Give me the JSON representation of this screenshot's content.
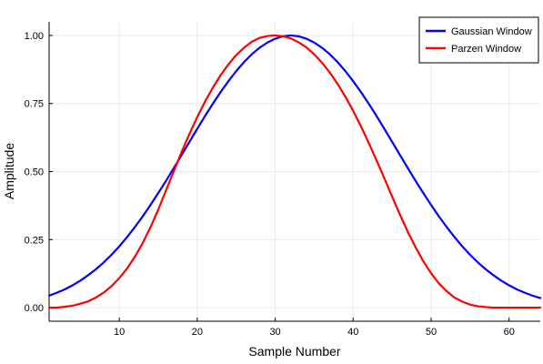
{
  "chart_data": {
    "type": "line",
    "title": "",
    "xlabel": "Sample Number",
    "ylabel": "Amplitude",
    "xlim": [
      1,
      64
    ],
    "ylim": [
      -0.05,
      1.05
    ],
    "grid": true,
    "legend_position": "top-right",
    "x_ticks": [
      {
        "value": 10,
        "label": "10"
      },
      {
        "value": 20,
        "label": "20"
      },
      {
        "value": 30,
        "label": "30"
      },
      {
        "value": 40,
        "label": "40"
      },
      {
        "value": 50,
        "label": "50"
      },
      {
        "value": 60,
        "label": "60"
      }
    ],
    "y_ticks": [
      {
        "value": 0.0,
        "label": "0.00"
      },
      {
        "value": 0.25,
        "label": "0.25"
      },
      {
        "value": 0.5,
        "label": "0.50"
      },
      {
        "value": 0.75,
        "label": "0.75"
      },
      {
        "value": 1.0,
        "label": "1.00"
      }
    ],
    "x": [
      1,
      2,
      3,
      4,
      5,
      6,
      7,
      8,
      9,
      10,
      11,
      12,
      13,
      14,
      15,
      16,
      17,
      18,
      19,
      20,
      21,
      22,
      23,
      24,
      25,
      26,
      27,
      28,
      29,
      30,
      31,
      32,
      33,
      34,
      35,
      36,
      37,
      38,
      39,
      40,
      41,
      42,
      43,
      44,
      45,
      46,
      47,
      48,
      49,
      50,
      51,
      52,
      53,
      54,
      55,
      56,
      57,
      58,
      59,
      60,
      61,
      62,
      63,
      64
    ],
    "series": [
      {
        "name": "Gaussian Window",
        "color": "#0000ff",
        "values": [
          0.044,
          0.055,
          0.067,
          0.082,
          0.099,
          0.119,
          0.141,
          0.166,
          0.194,
          0.225,
          0.259,
          0.296,
          0.335,
          0.377,
          0.421,
          0.466,
          0.513,
          0.561,
          0.609,
          0.657,
          0.704,
          0.749,
          0.792,
          0.832,
          0.869,
          0.902,
          0.931,
          0.955,
          0.974,
          0.988,
          0.997,
          1.0,
          0.997,
          0.988,
          0.974,
          0.955,
          0.931,
          0.902,
          0.869,
          0.832,
          0.792,
          0.749,
          0.704,
          0.657,
          0.609,
          0.561,
          0.513,
          0.466,
          0.421,
          0.377,
          0.335,
          0.296,
          0.259,
          0.225,
          0.194,
          0.166,
          0.141,
          0.119,
          0.099,
          0.082,
          0.067,
          0.055,
          0.044,
          0.035
        ]
      },
      {
        "name": "Parzen Window",
        "color": "#ff0000",
        "values": [
          0.0,
          0.0,
          0.003,
          0.007,
          0.014,
          0.023,
          0.037,
          0.055,
          0.079,
          0.108,
          0.144,
          0.187,
          0.237,
          0.295,
          0.36,
          0.431,
          0.502,
          0.572,
          0.638,
          0.7,
          0.757,
          0.808,
          0.854,
          0.894,
          0.928,
          0.955,
          0.977,
          0.991,
          0.998,
          1.0,
          0.997,
          0.989,
          0.975,
          0.956,
          0.931,
          0.9,
          0.864,
          0.822,
          0.775,
          0.723,
          0.666,
          0.605,
          0.541,
          0.475,
          0.408,
          0.342,
          0.279,
          0.222,
          0.17,
          0.126,
          0.089,
          0.06,
          0.037,
          0.022,
          0.011,
          0.005,
          0.002,
          0.0,
          0.0,
          0.0,
          0.0,
          0.0,
          0.0,
          0.0
        ]
      }
    ]
  }
}
